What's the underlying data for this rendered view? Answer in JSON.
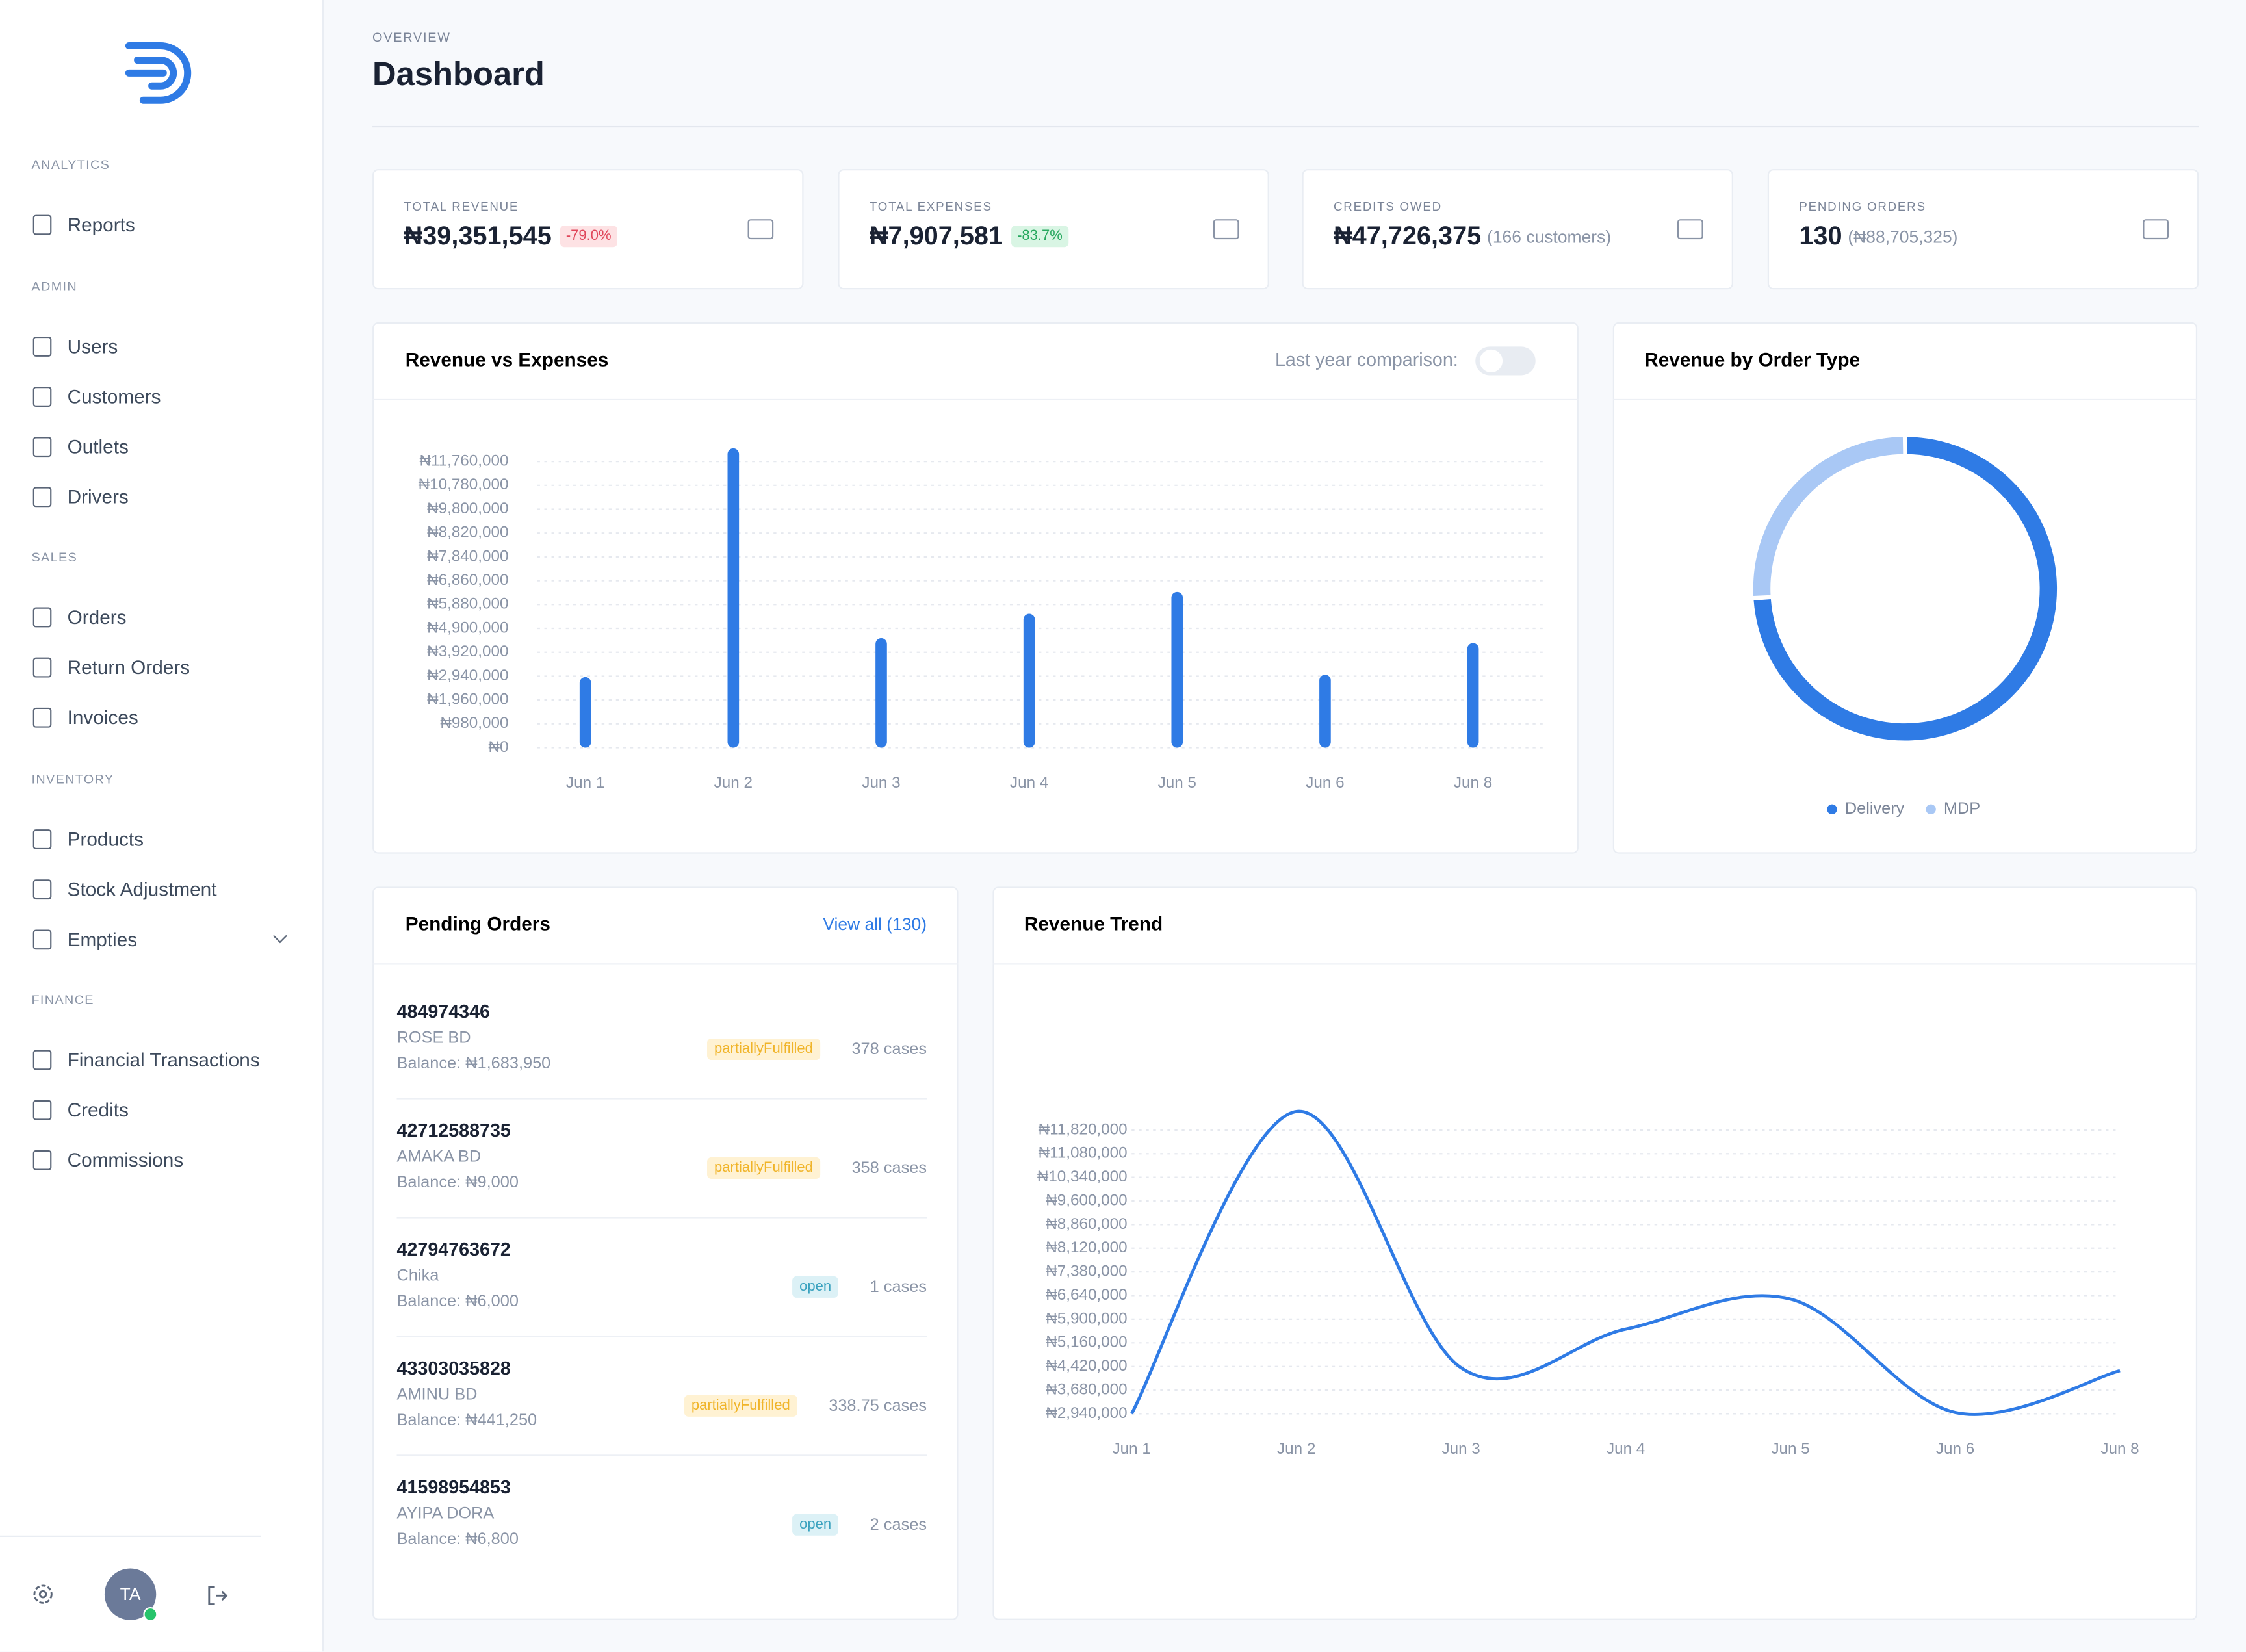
{
  "sidebar": {
    "sections": [
      {
        "label": "ANALYTICS",
        "items": [
          {
            "label": "Reports"
          }
        ]
      },
      {
        "label": "ADMIN",
        "items": [
          {
            "label": "Users"
          },
          {
            "label": "Customers"
          },
          {
            "label": "Outlets"
          },
          {
            "label": "Drivers"
          }
        ]
      },
      {
        "label": "SALES",
        "items": [
          {
            "label": "Orders"
          },
          {
            "label": "Return Orders"
          },
          {
            "label": "Invoices"
          }
        ]
      },
      {
        "label": "INVENTORY",
        "items": [
          {
            "label": "Products"
          },
          {
            "label": "Stock Adjustment"
          },
          {
            "label": "Empties",
            "expandable": true
          }
        ]
      },
      {
        "label": "FINANCE",
        "items": [
          {
            "label": "Financial Transactions"
          },
          {
            "label": "Credits"
          },
          {
            "label": "Commissions"
          }
        ]
      }
    ],
    "avatar": "TA"
  },
  "header": {
    "eyebrow": "OVERVIEW",
    "title": "Dashboard"
  },
  "kpis": [
    {
      "label": "TOTAL REVENUE",
      "value": "₦39,351,545",
      "badge": "-79.0%",
      "badge_tone": "negative"
    },
    {
      "label": "TOTAL EXPENSES",
      "value": "₦7,907,581",
      "badge": "-83.7%",
      "badge_tone": "positive"
    },
    {
      "label": "CREDITS OWED",
      "value": "₦47,726,375",
      "note": "(166 customers)"
    },
    {
      "label": "PENDING ORDERS",
      "value": "130",
      "note": "(₦88,705,325)"
    }
  ],
  "chart_data": [
    {
      "type": "bar",
      "title": "Revenue vs Expenses",
      "toggle_label": "Last year comparison:",
      "color": "#2f7be5",
      "categories": [
        "Jun 1",
        "Jun 2",
        "Jun 3",
        "Jun 4",
        "Jun 5",
        "Jun 6",
        "Jun 8"
      ],
      "values": [
        2900000,
        12300000,
        4500000,
        5500000,
        6400000,
        3000000,
        4300000
      ],
      "ylim": [
        0,
        12300000
      ],
      "yticks": [
        {
          "value": 0,
          "label": "₦0"
        },
        {
          "value": 980000,
          "label": "₦980,000"
        },
        {
          "value": 1960000,
          "label": "₦1,960,000"
        },
        {
          "value": 2940000,
          "label": "₦2,940,000"
        },
        {
          "value": 3920000,
          "label": "₦3,920,000"
        },
        {
          "value": 4900000,
          "label": "₦4,900,000"
        },
        {
          "value": 5880000,
          "label": "₦5,880,000"
        },
        {
          "value": 6860000,
          "label": "₦6,860,000"
        },
        {
          "value": 7840000,
          "label": "₦7,840,000"
        },
        {
          "value": 8820000,
          "label": "₦8,820,000"
        },
        {
          "value": 9800000,
          "label": "₦9,800,000"
        },
        {
          "value": 10780000,
          "label": "₦10,780,000"
        },
        {
          "value": 11760000,
          "label": "₦11,760,000"
        }
      ],
      "grid": true
    },
    {
      "type": "pie",
      "title": "Revenue by Order Type",
      "categories": [
        "Delivery",
        "MDP"
      ],
      "values": [
        74,
        26
      ],
      "colors": [
        "#2f7be5",
        "#a9c8f5"
      ],
      "donut": true
    },
    {
      "type": "line",
      "title": "Revenue Trend",
      "color": "#2f7be5",
      "categories": [
        "Jun 1",
        "Jun 2",
        "Jun 3",
        "Jun 4",
        "Jun 5",
        "Jun 6",
        "Jun 8"
      ],
      "values": [
        2940000,
        12400000,
        4380000,
        5590000,
        6530000,
        2980000,
        4290000
      ],
      "ylim": [
        2940000,
        12400000
      ],
      "yticks": [
        {
          "value": 2940000,
          "label": "₦2,940,000"
        },
        {
          "value": 3680000,
          "label": "₦3,680,000"
        },
        {
          "value": 4420000,
          "label": "₦4,420,000"
        },
        {
          "value": 5160000,
          "label": "₦5,160,000"
        },
        {
          "value": 5900000,
          "label": "₦5,900,000"
        },
        {
          "value": 6640000,
          "label": "₦6,640,000"
        },
        {
          "value": 7380000,
          "label": "₦7,380,000"
        },
        {
          "value": 8120000,
          "label": "₦8,120,000"
        },
        {
          "value": 8860000,
          "label": "₦8,860,000"
        },
        {
          "value": 9600000,
          "label": "₦9,600,000"
        },
        {
          "value": 10340000,
          "label": "₦10,340,000"
        },
        {
          "value": 11080000,
          "label": "₦11,080,000"
        },
        {
          "value": 11820000,
          "label": "₦11,820,000"
        }
      ],
      "grid": true
    }
  ],
  "pending_orders": {
    "title": "Pending Orders",
    "link": "View all (130)",
    "rows": [
      {
        "id": "484974346",
        "customer": "ROSE BD",
        "balance": "Balance: ₦1,683,950",
        "status": "partiallyFulfilled",
        "cases": "378 cases"
      },
      {
        "id": "42712588735",
        "customer": "AMAKA BD",
        "balance": "Balance: ₦9,000",
        "status": "partiallyFulfilled",
        "cases": "358 cases"
      },
      {
        "id": "42794763672",
        "customer": "Chika",
        "balance": "Balance: ₦6,000",
        "status": "open",
        "cases": "1 cases"
      },
      {
        "id": "43303035828",
        "customer": "AMINU BD",
        "balance": "Balance: ₦441,250",
        "status": "partiallyFulfilled",
        "cases": "338.75 cases"
      },
      {
        "id": "41598954853",
        "customer": "AYIPA DORA",
        "balance": "Balance: ₦6,800",
        "status": "open",
        "cases": "2 cases"
      }
    ]
  }
}
